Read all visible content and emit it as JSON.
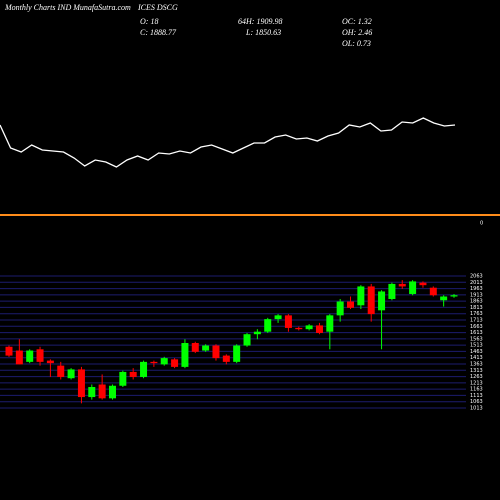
{
  "header": {
    "title": "Monthly Charts IND MunafaSutra.com",
    "symbol": "ICES DSCG",
    "open": "O: 18",
    "overlap": "64",
    "high": "H: 1909.98",
    "close": "C: 1888.77",
    "low": "L: 1850.63",
    "oc": "OC: 1.32",
    "oh": "OH: 2.46",
    "ol": "OL: 0.73"
  },
  "chart_data": [
    {
      "type": "line",
      "color": "#ffffff",
      "values": [
        90,
        67,
        63,
        70,
        65,
        64,
        63,
        57,
        49,
        55,
        53,
        48,
        55,
        59,
        55,
        62,
        61,
        64,
        62,
        68,
        70,
        66,
        62,
        67,
        72,
        72,
        78,
        80,
        76,
        77,
        74,
        79,
        82,
        90,
        88,
        92,
        84,
        85,
        93,
        92,
        97,
        92,
        89,
        90
      ],
      "ylim": [
        0,
        100
      ],
      "yticks": [
        0
      ],
      "tick_color": "#ff8c1a"
    },
    {
      "type": "candlestick",
      "up_color": "#00ff00",
      "down_color": "#ff0000",
      "grid": true,
      "grid_color": "#1c1c6e",
      "open": [
        1500,
        1470,
        1380,
        1480,
        1390,
        1350,
        1250,
        1320,
        1100,
        1200,
        1090,
        1190,
        1300,
        1260,
        1380,
        1360,
        1400,
        1340,
        1530,
        1470,
        1510,
        1430,
        1380,
        1510,
        1600,
        1620,
        1720,
        1750,
        1650,
        1640,
        1670,
        1620,
        1750,
        1860,
        1830,
        1980,
        1790,
        1880,
        2000,
        1920,
        2010,
        1970,
        1870,
        1900
      ],
      "high": [
        1510,
        1560,
        1480,
        1500,
        1400,
        1380,
        1330,
        1340,
        1200,
        1280,
        1200,
        1310,
        1330,
        1390,
        1390,
        1420,
        1410,
        1560,
        1540,
        1520,
        1520,
        1440,
        1520,
        1610,
        1640,
        1730,
        1760,
        1760,
        1660,
        1680,
        1690,
        1760,
        1880,
        1900,
        1990,
        2000,
        1950,
        2010,
        2030,
        2030,
        2020,
        1980,
        1910,
        1920
      ],
      "low": [
        1420,
        1360,
        1370,
        1350,
        1260,
        1240,
        1240,
        1050,
        1080,
        1080,
        1080,
        1180,
        1240,
        1250,
        1340,
        1350,
        1330,
        1330,
        1450,
        1460,
        1390,
        1360,
        1370,
        1500,
        1560,
        1610,
        1690,
        1620,
        1630,
        1630,
        1600,
        1480,
        1700,
        1800,
        1800,
        1700,
        1480,
        1870,
        1960,
        1910,
        1970,
        1900,
        1820,
        1890
      ],
      "close": [
        1430,
        1360,
        1470,
        1380,
        1370,
        1260,
        1320,
        1100,
        1180,
        1090,
        1190,
        1300,
        1260,
        1380,
        1370,
        1410,
        1340,
        1530,
        1460,
        1510,
        1410,
        1380,
        1510,
        1600,
        1620,
        1720,
        1750,
        1650,
        1640,
        1670,
        1610,
        1750,
        1860,
        1810,
        1980,
        1760,
        1940,
        2000,
        1980,
        2020,
        1990,
        1910,
        1900,
        1910
      ],
      "ylim": [
        1013,
        2063
      ],
      "yticks": [
        2063,
        2013,
        1963,
        1913,
        1863,
        1813,
        1763,
        1713,
        1663,
        1613,
        1563,
        1513,
        1463,
        1413,
        1363,
        1313,
        1263,
        1213,
        1163,
        1113,
        1063,
        1013
      ]
    }
  ]
}
